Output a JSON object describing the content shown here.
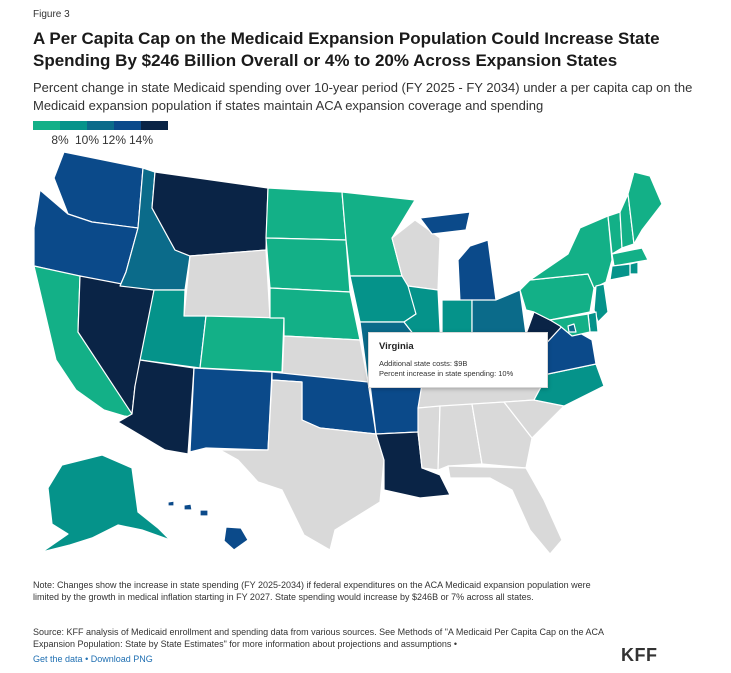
{
  "figure_label": "Figure 3",
  "title": "A Per Capita Cap on the Medicaid Expansion Population Could Increase State Spending By $246 Billion Overall or 4% to 20% Across Expansion States",
  "subtitle": "Percent change in state Medicaid spending over 10-year period (FY 2025 - FY 2034) under a per capita cap on the Medicaid expansion population if states maintain ACA expansion coverage and spending",
  "legend": {
    "colors": [
      "#13b087",
      "#05938a",
      "#0b6b8a",
      "#0b4a8a",
      "#0a2446"
    ],
    "ticks": [
      "8%",
      "10%",
      "12%",
      "14%"
    ],
    "no_data_color": "#d9d9d9"
  },
  "tooltip": {
    "state": "Virginia",
    "line1": "Additional state costs: $9B",
    "line2": "Percent increase in state spending: 10%"
  },
  "note": "Note: Changes show the increase in state spending (FY 2025-2034) if federal expenditures on the ACA Medicaid expansion population were limited by the growth in medical inflation starting in FY 2027. State spending would increase by $246B or 7% across all states.",
  "source": "Source: KFF analysis of Medicaid enrollment and spending data from various sources. See Methods of \"A Medicaid Per Capita Cap on the ACA Expansion Population: State by State Estimates\" for more information about projections and assumptions •",
  "links": {
    "get_data": "Get the data",
    "separator": "•",
    "download": "Download PNG"
  },
  "logo_text": "KFF",
  "states": {
    "WA": 4,
    "OR": 4,
    "CA": 1,
    "NV": 5,
    "ID": 3,
    "MT": 5,
    "WY": 0,
    "UT": 2,
    "AZ": 5,
    "CO": 1,
    "NM": 4,
    "ND": 1,
    "SD": 1,
    "NE": 1,
    "KS": 0,
    "OK": 4,
    "TX": 0,
    "MN": 1,
    "IA": 2,
    "MO": 3,
    "AR": 4,
    "LA": 5,
    "WI": 0,
    "IL": 2,
    "MI": 4,
    "IN": 2,
    "OH": 3,
    "KY": 2,
    "TN": 0,
    "MS": 0,
    "AL": 0,
    "GA": 0,
    "FL": 0,
    "SC": 0,
    "NC": 2,
    "VA": 4,
    "WV": 5,
    "PA": 1,
    "NY": 1,
    "VT": 1,
    "NH": 1,
    "ME": 1,
    "MA": 1,
    "RI": 2,
    "CT": 2,
    "NJ": 2,
    "DE": 2,
    "MD": 1,
    "DC": 3,
    "AK": 2,
    "HI": 4
  }
}
